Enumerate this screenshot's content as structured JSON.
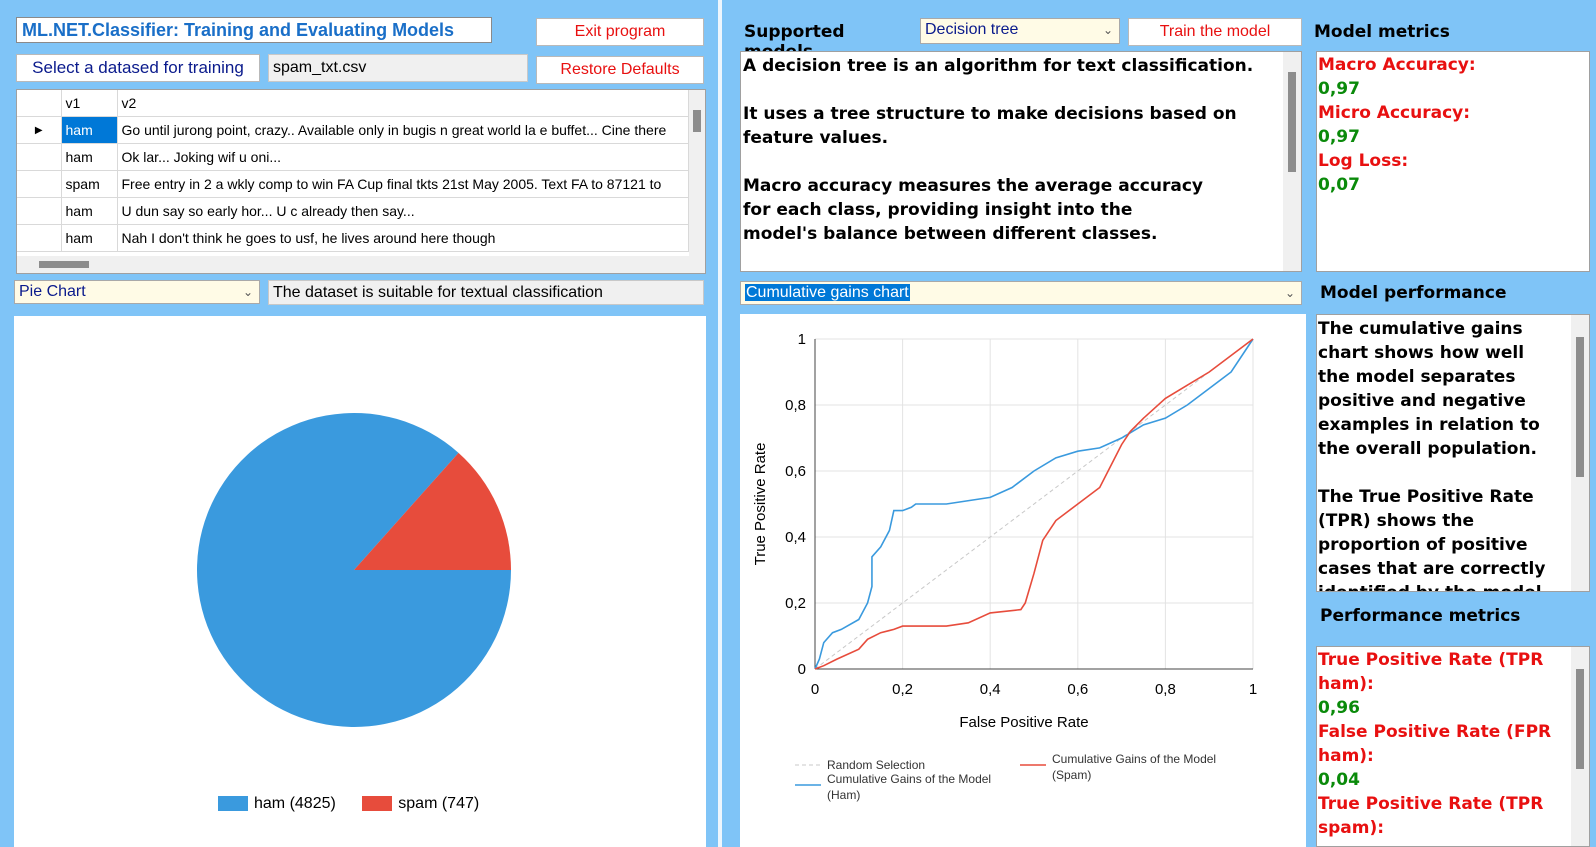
{
  "app": {
    "title": "ML.NET.Classifier: Training and Evaluating Models",
    "exit_label": "Exit program",
    "restore_label": "Restore Defaults",
    "select_dataset_label": "Select a datased for training",
    "dataset_file": "spam_txt.csv"
  },
  "grid": {
    "columns": [
      "v1",
      "v2"
    ],
    "rows": [
      {
        "v1": "ham",
        "v2": "Go until jurong point, crazy.. Available only in bugis n great world la e buffet... Cine there"
      },
      {
        "v1": "ham",
        "v2": "Ok lar... Joking wif u oni..."
      },
      {
        "v1": "spam",
        "v2": "Free entry in 2 a wkly comp to win FA Cup final tkts 21st May 2005. Text FA to 87121 to"
      },
      {
        "v1": "ham",
        "v2": "U dun say so early hor... U c already then say..."
      },
      {
        "v1": "ham",
        "v2": "Nah I don't think he goes to usf, he lives around here though"
      }
    ]
  },
  "left_chart": {
    "selector_value": "Pie Chart",
    "status_text": "The dataset is suitable for textual classification"
  },
  "chart_data": [
    {
      "type": "pie",
      "labels": [
        "ham",
        "spam"
      ],
      "values": [
        4825,
        747
      ],
      "legend": [
        "ham (4825)",
        "spam (747)"
      ],
      "colors": [
        "#3a9ade",
        "#e74c3c"
      ]
    },
    {
      "type": "line",
      "title": "Cumulative gains chart",
      "xlabel": "False Positive Rate",
      "ylabel": "True Positive Rate",
      "xlim": [
        0,
        1
      ],
      "ylim": [
        0,
        1
      ],
      "xticks": [
        "0",
        "0,2",
        "0,4",
        "0,6",
        "0,8",
        "1"
      ],
      "yticks": [
        "0",
        "0,2",
        "0,4",
        "0,6",
        "0,8",
        "1"
      ],
      "grid": true,
      "legend_position": "bottom",
      "series": [
        {
          "name": "Random Selection",
          "color": "#c8c8c8",
          "dashed": true,
          "x": [
            0,
            1
          ],
          "y": [
            0,
            1
          ]
        },
        {
          "name": "Cumulative Gains of the Model (Ham)",
          "color": "#3a9ade",
          "x": [
            0,
            0.01,
            0.02,
            0.04,
            0.06,
            0.1,
            0.12,
            0.13,
            0.13,
            0.15,
            0.17,
            0.18,
            0.18,
            0.2,
            0.22,
            0.23,
            0.3,
            0.4,
            0.45,
            0.5,
            0.55,
            0.6,
            0.65,
            0.7,
            0.75,
            0.8,
            0.85,
            0.9,
            0.95,
            1
          ],
          "y": [
            0,
            0.03,
            0.08,
            0.11,
            0.12,
            0.15,
            0.2,
            0.25,
            0.34,
            0.37,
            0.42,
            0.48,
            0.48,
            0.48,
            0.49,
            0.5,
            0.5,
            0.52,
            0.55,
            0.6,
            0.64,
            0.66,
            0.67,
            0.7,
            0.74,
            0.76,
            0.8,
            0.85,
            0.9,
            1
          ]
        },
        {
          "name": "Cumulative Gains of the Model (Spam)",
          "color": "#e74c3c",
          "x": [
            0,
            0.02,
            0.05,
            0.1,
            0.12,
            0.15,
            0.18,
            0.2,
            0.3,
            0.35,
            0.4,
            0.47,
            0.48,
            0.5,
            0.52,
            0.55,
            0.6,
            0.65,
            0.7,
            0.72,
            0.75,
            0.8,
            0.85,
            0.9,
            0.95,
            1
          ],
          "y": [
            0,
            0.01,
            0.03,
            0.06,
            0.09,
            0.11,
            0.12,
            0.13,
            0.13,
            0.14,
            0.17,
            0.18,
            0.2,
            0.29,
            0.39,
            0.45,
            0.5,
            0.55,
            0.68,
            0.72,
            0.76,
            0.82,
            0.86,
            0.9,
            0.95,
            1
          ]
        }
      ]
    }
  ],
  "models": {
    "header": "Supported models",
    "selected": "Decision tree",
    "train_label": "Train the model",
    "description": [
      "A decision tree is an algorithm for text classification.",
      "",
      "It uses a tree structure to make decisions based on",
      "feature values.",
      "",
      "Macro accuracy measures the average accuracy",
      "for each class, providing insight into the",
      "model's balance between different classes."
    ]
  },
  "metrics": {
    "header": "Model metrics",
    "items": [
      {
        "label": "Macro Accuracy:",
        "value": "0,97"
      },
      {
        "label": "Micro Accuracy:",
        "value": "0,97"
      },
      {
        "label": "Log Loss:",
        "value": "0,07"
      }
    ]
  },
  "chart_selector": {
    "value": "Cumulative gains chart"
  },
  "performance": {
    "header": "Model performance",
    "text": [
      "The cumulative gains",
      "chart shows how well",
      "the model separates",
      "positive and negative",
      "examples in relation to",
      "the overall population.",
      "",
      "The True Positive Rate",
      "(TPR) shows the",
      "proportion of positive",
      "cases that are correctly",
      "identified by the model."
    ]
  },
  "performance_metrics": {
    "header": "Performance metrics",
    "items": [
      {
        "label1": "True Positive Rate (TPR",
        "label2": "ham):",
        "value": "0,96"
      },
      {
        "label1": "False Positive Rate (FPR",
        "label2": "ham):",
        "value": "0,04"
      },
      {
        "label1": "True Positive Rate (TPR",
        "label2": "spam):",
        "value": ""
      }
    ]
  },
  "colors": {
    "background": "#7fc4f7",
    "accent_red": "#e81010",
    "value_green": "#0a8a0a",
    "selection_blue": "#0078d7"
  }
}
